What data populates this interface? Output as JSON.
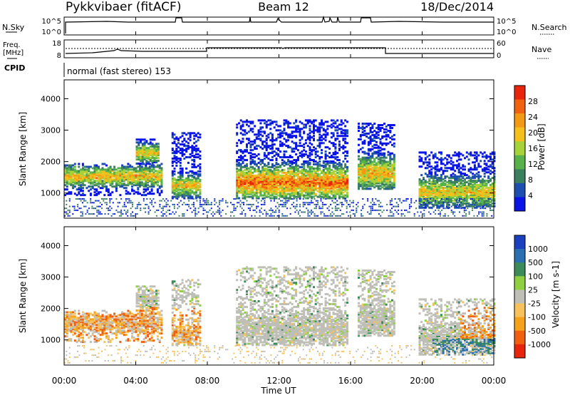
{
  "header": {
    "station": "Pykkvibaer (fitACF)",
    "beam": "Beam 12",
    "date": "18/Dec/2014"
  },
  "top_panels": {
    "nsky_label": "N.Sky",
    "nsky_ticks": [
      "10^5",
      "10^0"
    ],
    "nsearch_ticks": [
      "10^5",
      "10^0"
    ],
    "nsearch_label": "N.Search",
    "freq_label": "Freq.",
    "freq_unit": "[MHz]",
    "freq_ticks": [
      "18",
      "8"
    ],
    "nave_ticks": [
      "60",
      "0"
    ],
    "nave_label": "Nave",
    "cpid_label": "CPID",
    "cpid_value": "normal (fast stereo) 153"
  },
  "colors": {
    "power": [
      "#0a14e6",
      "#1d4fb0",
      "#3c8060",
      "#58b24a",
      "#a6d23a",
      "#f6c01a",
      "#f39a15",
      "#f2620e",
      "#e8250a"
    ],
    "velocity": [
      "#e8250a",
      "#f0600f",
      "#f5a21a",
      "#f7c25c",
      "#bfbfb8",
      "#8fd040",
      "#3c8c5a",
      "#2a6fb2",
      "#1a3fc0"
    ]
  },
  "chart_data": [
    {
      "type": "heatmap",
      "name": "power",
      "ylabel": "Slant Range [km]",
      "xlim_hours": [
        0,
        24
      ],
      "ylim_km": [
        200,
        4600
      ],
      "yticks": [
        "1000",
        "2000",
        "3000",
        "4000"
      ],
      "colorbar_title": "Power [dB]",
      "colorbar_ticks": [
        "4",
        "8",
        "12",
        "16",
        "20",
        "24",
        "28"
      ],
      "colorbar_range": [
        0,
        32
      ],
      "grid": false
    },
    {
      "type": "heatmap",
      "name": "velocity",
      "ylabel": "Slant Range [km]",
      "xlabel": "Time UT",
      "xticks": [
        "00:00",
        "04:00",
        "08:00",
        "12:00",
        "16:00",
        "20:00",
        "00:00"
      ],
      "xlim_hours": [
        0,
        24
      ],
      "ylim_km": [
        200,
        4600
      ],
      "yticks": [
        "1000",
        "2000",
        "3000",
        "4000"
      ],
      "colorbar_title": "Velocity [m s-1]",
      "colorbar_ticks": [
        "1000",
        "500",
        "100",
        "25",
        "-25",
        "-100",
        "-500",
        "-1000"
      ],
      "grid": false
    }
  ]
}
